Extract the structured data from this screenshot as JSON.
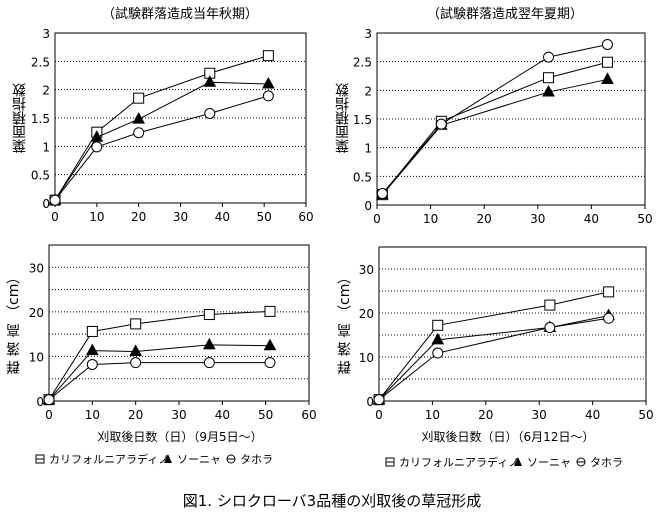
{
  "figure_caption": "図1. シロクローバ3品種の刈取後の草冠形成",
  "legend": {
    "items": [
      {
        "symbol": "square",
        "label": "カリフォルニアラディノ"
      },
      {
        "symbol": "triangle",
        "label": "ソーニャ"
      },
      {
        "symbol": "circle",
        "label": "タホラ"
      }
    ]
  },
  "chart_data": [
    {
      "id": "lai-autumn",
      "type": "line",
      "title": "（試験群落造成当年秋期）",
      "xlabel": "",
      "ylabel": "葉面積指数",
      "xlim": [
        0,
        60
      ],
      "ylim": [
        0,
        3
      ],
      "xticks": [
        "0",
        "10",
        "20",
        "30",
        "40",
        "50",
        "60"
      ],
      "yticks": [
        "0",
        "0.5",
        "1",
        "1.5",
        "2",
        "2.5",
        "3"
      ],
      "ytick_values": [
        0,
        0.5,
        1,
        1.5,
        2,
        2.5,
        3
      ],
      "xtick_values": [
        0,
        10,
        20,
        30,
        40,
        50,
        60
      ],
      "grid": "horizontal-dotted",
      "series": [
        {
          "name": "カリフォルニアラディノ",
          "marker": "square",
          "x": [
            0,
            10,
            20,
            37,
            51
          ],
          "y": [
            0.05,
            1.25,
            1.85,
            2.29,
            2.6
          ]
        },
        {
          "name": "ソーニャ",
          "marker": "triangle",
          "x": [
            0,
            10,
            20,
            37,
            51
          ],
          "y": [
            0.05,
            1.16,
            1.48,
            2.13,
            2.1
          ]
        },
        {
          "name": "タホラ",
          "marker": "circle",
          "x": [
            0,
            10,
            20,
            37,
            51
          ],
          "y": [
            0.05,
            0.99,
            1.24,
            1.58,
            1.89
          ]
        }
      ]
    },
    {
      "id": "lai-summer",
      "type": "line",
      "title": "（試験群落造成翌年夏期）",
      "xlabel": "",
      "ylabel": "葉面積指数",
      "xlim": [
        0,
        50
      ],
      "ylim": [
        0,
        3
      ],
      "xticks": [
        "0",
        "10",
        "20",
        "30",
        "40",
        "50"
      ],
      "yticks": [
        "0",
        "0.5",
        "1",
        "1.5",
        "2",
        "2.5",
        "3"
      ],
      "ytick_values": [
        0,
        0.5,
        1,
        1.5,
        2,
        2.5,
        3
      ],
      "xtick_values": [
        0,
        10,
        20,
        30,
        40,
        50
      ],
      "grid": "horizontal-dotted",
      "series": [
        {
          "name": "カリフォルニアラディノ",
          "marker": "square",
          "x": [
            1,
            12,
            32,
            43
          ],
          "y": [
            0.18,
            1.46,
            2.22,
            2.49
          ]
        },
        {
          "name": "ソーニャ",
          "marker": "triangle",
          "x": [
            1,
            12,
            32,
            43
          ],
          "y": [
            0.18,
            1.39,
            1.97,
            2.19
          ]
        },
        {
          "name": "タホラ",
          "marker": "circle",
          "x": [
            1,
            12,
            32,
            43
          ],
          "y": [
            0.2,
            1.41,
            2.58,
            2.8
          ]
        }
      ]
    },
    {
      "id": "height-autumn",
      "type": "line",
      "title": "",
      "xlabel": "刈取後日数（日）（9月5日～）",
      "ylabel": "群 落 高 （cm）",
      "xlim": [
        0,
        60
      ],
      "ylim": [
        0,
        35
      ],
      "xticks": [
        "0",
        "10",
        "20",
        "30",
        "40",
        "50",
        "60"
      ],
      "yticks": [
        "0",
        "10",
        "20",
        "30"
      ],
      "ytick_values": [
        0,
        10,
        20,
        30
      ],
      "xtick_values": [
        0,
        10,
        20,
        30,
        40,
        50,
        60
      ],
      "grid": "horizontal-dotted",
      "series": [
        {
          "name": "カリフォルニアラディノ",
          "marker": "square",
          "x": [
            0,
            10,
            20,
            37,
            51
          ],
          "y": [
            0.3,
            15.6,
            17.3,
            19.4,
            20.1
          ]
        },
        {
          "name": "ソーニャ",
          "marker": "triangle",
          "x": [
            0,
            10,
            20,
            37,
            51
          ],
          "y": [
            0.3,
            11.3,
            11.1,
            12.6,
            12.4
          ]
        },
        {
          "name": "タホラ",
          "marker": "circle",
          "x": [
            0,
            10,
            20,
            37,
            51
          ],
          "y": [
            0.3,
            8.2,
            8.6,
            8.6,
            8.6
          ]
        }
      ]
    },
    {
      "id": "height-summer",
      "type": "line",
      "title": "",
      "xlabel": "刈取後日数（日）（6月12日～）",
      "ylabel": "群 落 高 （cm）",
      "xlim": [
        0,
        50
      ],
      "ylim": [
        0,
        35
      ],
      "xticks": [
        "0",
        "10",
        "20",
        "30",
        "40",
        "50"
      ],
      "yticks": [
        "0",
        "10",
        "20",
        "30"
      ],
      "ytick_values": [
        0,
        10,
        20,
        30
      ],
      "xtick_values": [
        0,
        10,
        20,
        30,
        40,
        50
      ],
      "grid": "horizontal-dotted",
      "series": [
        {
          "name": "カリフォルニアラディノ",
          "marker": "square",
          "x": [
            0,
            11,
            32,
            43
          ],
          "y": [
            0.3,
            17.2,
            21.8,
            24.8
          ]
        },
        {
          "name": "ソーニャ",
          "marker": "triangle",
          "x": [
            0,
            11,
            32,
            43
          ],
          "y": [
            0.3,
            13.9,
            16.7,
            19.4
          ]
        },
        {
          "name": "タホラ",
          "marker": "circle",
          "x": [
            0,
            11,
            32,
            43
          ],
          "y": [
            0.3,
            10.9,
            16.7,
            18.8
          ]
        }
      ]
    }
  ]
}
